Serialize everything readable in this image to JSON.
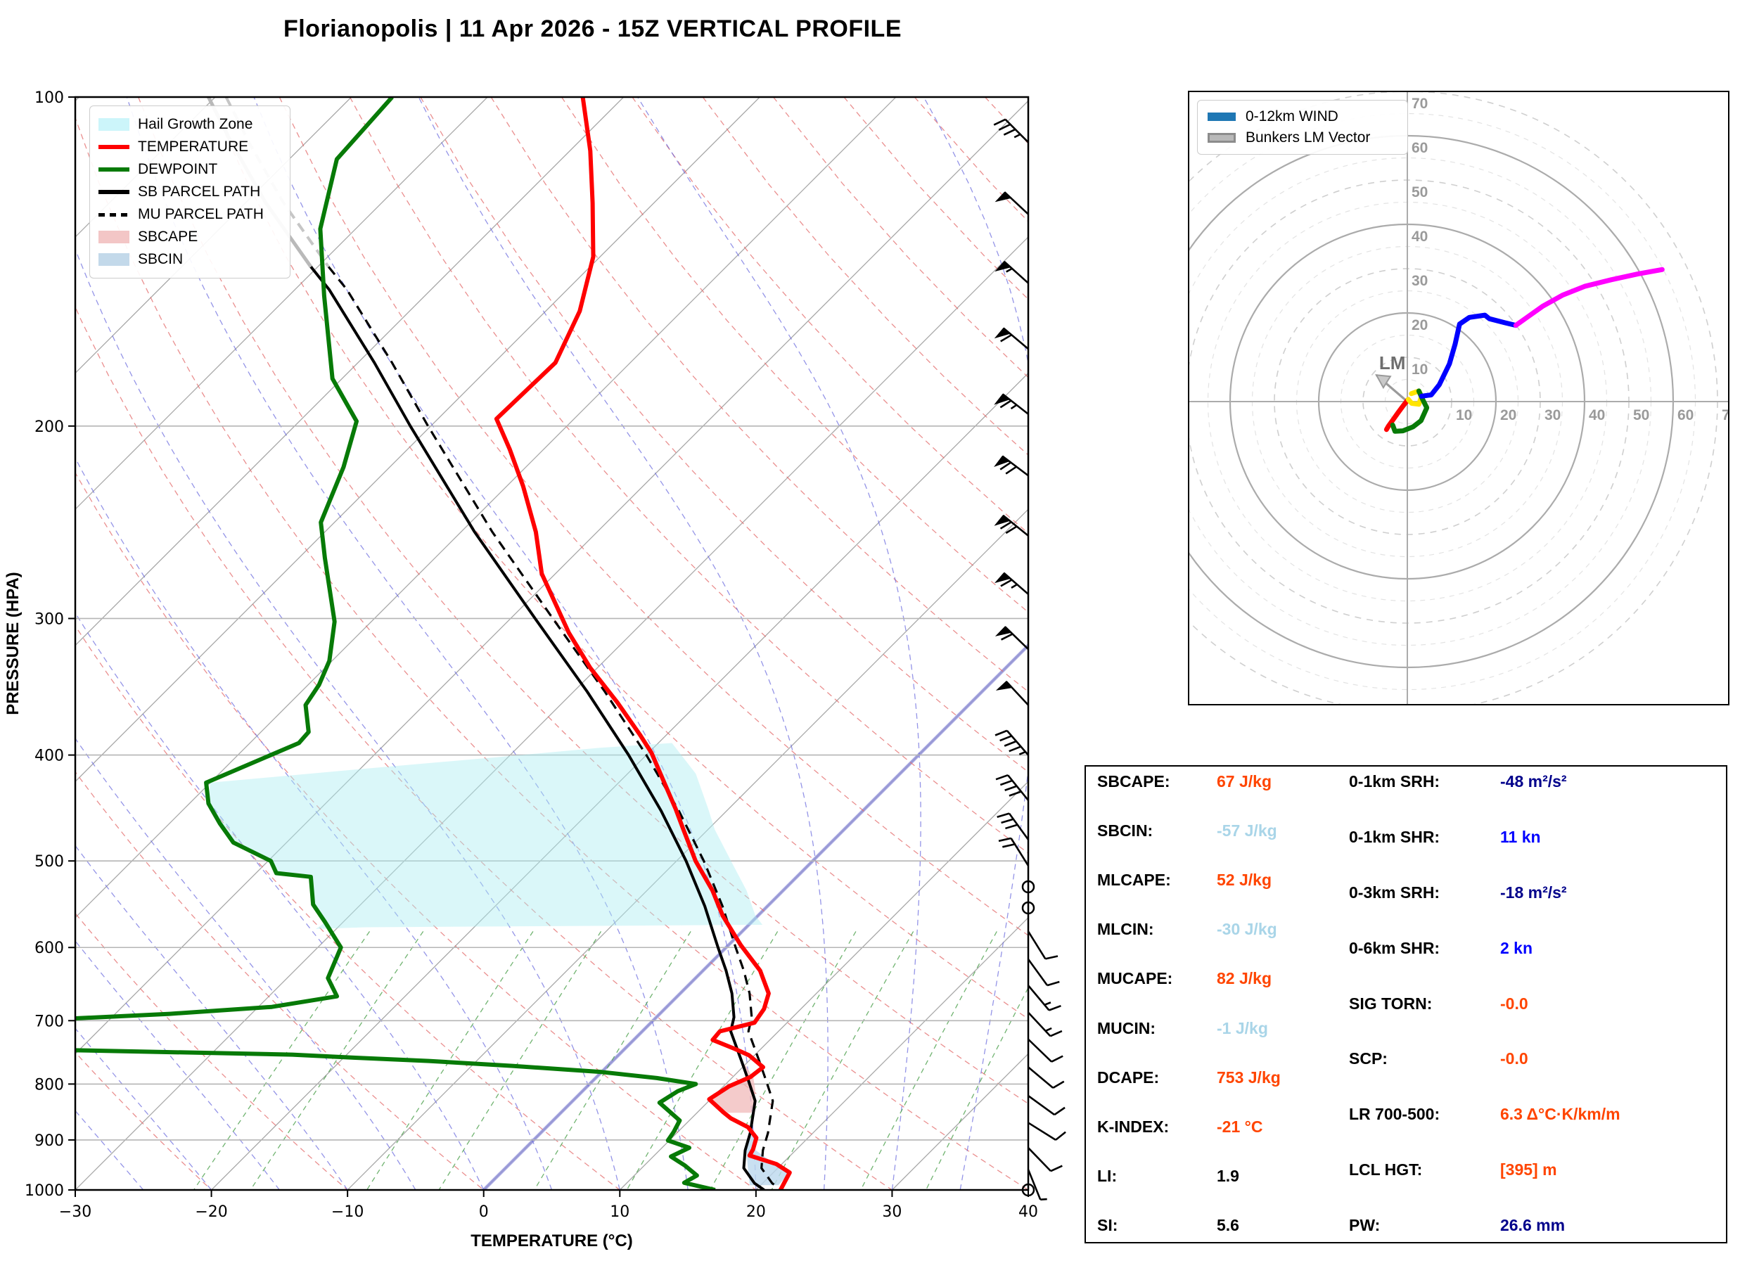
{
  "title": "Florianopolis | 11 Apr 2026 - 15Z VERTICAL PROFILE",
  "skewt": {
    "xlabel": "TEMPERATURE (°C)",
    "ylabel": "PRESSURE (HPA)",
    "x_ticks": [
      -30,
      -20,
      -10,
      0,
      10,
      20,
      30,
      40
    ],
    "p_ticks": [
      100,
      200,
      300,
      400,
      500,
      600,
      700,
      800,
      900,
      1000
    ],
    "legend": [
      {
        "label": "Hail Growth Zone",
        "swatch": "patch",
        "color": "#ccf5fa"
      },
      {
        "label": "TEMPERATURE",
        "swatch": "line",
        "color": "#ff0000"
      },
      {
        "label": "DEWPOINT",
        "swatch": "line",
        "color": "#077a07"
      },
      {
        "label": "SB PARCEL PATH",
        "swatch": "line",
        "color": "#000000"
      },
      {
        "label": "MU PARCEL PATH",
        "swatch": "dash",
        "color": "#000000"
      },
      {
        "label": "SBCAPE",
        "swatch": "patch",
        "color": "#f3c6c6"
      },
      {
        "label": "SBCIN",
        "swatch": "patch",
        "color": "#c3d9ea"
      }
    ]
  },
  "hodograph": {
    "legend": [
      {
        "label": "0-12km WIND",
        "swatch": "thick",
        "color": "#1f77b4"
      },
      {
        "label": "Bunkers LM Vector",
        "swatch": "gray",
        "color": "#b9b9b9"
      }
    ],
    "ring_labels": [
      10,
      20,
      30,
      40,
      50,
      60,
      70
    ],
    "lm_label": "LM"
  },
  "stats": {
    "left": [
      {
        "label": "SBCAPE:",
        "value": "67 J/kg",
        "color": "#ff4500"
      },
      {
        "label": "SBCIN:",
        "value": "-57 J/kg",
        "color": "#a9d5e8"
      },
      {
        "label": "MLCAPE:",
        "value": "52 J/kg",
        "color": "#ff4500"
      },
      {
        "label": "MLCIN:",
        "value": "-30 J/kg",
        "color": "#a9d5e8"
      },
      {
        "label": "MUCAPE:",
        "value": "82 J/kg",
        "color": "#ff4500"
      },
      {
        "label": "MUCIN:",
        "value": "-1 J/kg",
        "color": "#a9d5e8"
      },
      {
        "label": "DCAPE:",
        "value": "753 J/kg",
        "color": "#ff4500"
      },
      {
        "label": "K-INDEX:",
        "value": "-21 °C",
        "color": "#ff4500"
      },
      {
        "label": "LI:",
        "value": "1.9",
        "color": "#000000"
      },
      {
        "label": "SI:",
        "value": "5.6",
        "color": "#000000"
      }
    ],
    "right": [
      {
        "label": "0-1km SRH:",
        "value": "-48 m²/s²",
        "color": "#00008b"
      },
      {
        "label": "0-1km SHR:",
        "value": "11 kn",
        "color": "#0000ff"
      },
      {
        "label": "0-3km SRH:",
        "value": "-18 m²/s²",
        "color": "#00008b"
      },
      {
        "label": "0-6km SHR:",
        "value": "2 kn",
        "color": "#0000ff"
      },
      {
        "label": "SIG TORN:",
        "value": "-0.0",
        "color": "#ff4500"
      },
      {
        "label": "SCP:",
        "value": "-0.0",
        "color": "#ff4500"
      },
      {
        "label": "LR 700-500:",
        "value": "6.3 Δ°C·K/km/m",
        "color": "#ff4500"
      },
      {
        "label": "LCL HGT:",
        "value": "[395] m",
        "color": "#ff4500"
      },
      {
        "label": "PW:",
        "value": "26.6 mm",
        "color": "#00008b"
      }
    ]
  },
  "chart_data": {
    "type": "line",
    "title": "Florianopolis | 11 Apr 2026 - 15Z VERTICAL PROFILE",
    "xlabel": "TEMPERATURE (°C)",
    "ylabel": "PRESSURE (HPA)",
    "x_range_at_1000hpa_degC": [
      -30,
      40
    ],
    "pressure_range_hpa": [
      1000,
      100
    ],
    "pressure_scale": "log",
    "series": [
      {
        "name": "temperature_degC_vs_hpa",
        "color": "#ff0000",
        "points": [
          [
            100,
            -73
          ],
          [
            112,
            -68.5
          ],
          [
            125,
            -64.5
          ],
          [
            140,
            -60.5
          ],
          [
            157,
            -57.5
          ],
          [
            175,
            -55.5
          ],
          [
            197,
            -55.7
          ],
          [
            210,
            -52.5
          ],
          [
            227,
            -48.8
          ],
          [
            250,
            -44.5
          ],
          [
            273,
            -41.0
          ],
          [
            309,
            -34.7
          ],
          [
            333,
            -30.5
          ],
          [
            358,
            -26.0
          ],
          [
            383,
            -22.0
          ],
          [
            398,
            -19.8
          ],
          [
            416,
            -17.6
          ],
          [
            448,
            -13.9
          ],
          [
            468,
            -11.8
          ],
          [
            500,
            -8.6
          ],
          [
            532,
            -5.2
          ],
          [
            561,
            -2.6
          ],
          [
            597,
            0.9
          ],
          [
            630,
            4.2
          ],
          [
            661,
            6.5
          ],
          [
            683,
            7.3
          ],
          [
            703,
            7.6
          ],
          [
            716,
            5.7
          ],
          [
            729,
            5.8
          ],
          [
            743,
            8.1
          ],
          [
            753,
            9.6
          ],
          [
            772,
            11.5
          ],
          [
            788,
            11.3
          ],
          [
            804,
            10.4
          ],
          [
            826,
            9.9
          ],
          [
            849,
            11.9
          ],
          [
            860,
            12.9
          ],
          [
            876,
            14.8
          ],
          [
            896,
            16.2
          ],
          [
            918,
            16.8
          ],
          [
            930,
            17.0
          ],
          [
            947,
            19.6
          ],
          [
            964,
            21.2
          ],
          [
            1000,
            21.8
          ]
        ]
      },
      {
        "name": "dewpoint_degC_vs_hpa",
        "color": "#077a07",
        "points": [
          [
            100,
            -87
          ],
          [
            114,
            -86.5
          ],
          [
            132,
            -82.6
          ],
          [
            152,
            -77.4
          ],
          [
            181,
            -70.7
          ],
          [
            198,
            -65.8
          ],
          [
            218,
            -63.4
          ],
          [
            245,
            -61.0
          ],
          [
            264,
            -58.1
          ],
          [
            302,
            -52.7
          ],
          [
            328,
            -50.2
          ],
          [
            345,
            -49.2
          ],
          [
            360,
            -48.7
          ],
          [
            381,
            -46.5
          ],
          [
            390,
            -46.4
          ],
          [
            424,
            -50.3
          ],
          [
            443,
            -48.6
          ],
          [
            462,
            -46.3
          ],
          [
            481,
            -43.9
          ],
          [
            500,
            -39.8
          ],
          [
            513,
            -38.5
          ],
          [
            517,
            -35.7
          ],
          [
            548,
            -33.5
          ],
          [
            569,
            -31.3
          ],
          [
            600,
            -28.3
          ],
          [
            640,
            -27.0
          ],
          [
            665,
            -25.0
          ],
          [
            680,
            -29.0
          ],
          [
            690,
            -36.0
          ],
          [
            698,
            -44.0
          ],
          [
            700,
            -47.5
          ],
          [
            742,
            -43.0
          ],
          [
            745,
            -40.3
          ],
          [
            752,
            -24.0
          ],
          [
            757,
            -19.0
          ],
          [
            762,
            -13.5
          ],
          [
            770,
            -7.0
          ],
          [
            780,
            0.0
          ],
          [
            790,
            4.5
          ],
          [
            800,
            7.8
          ],
          [
            812,
            7.0
          ],
          [
            832,
            6.5
          ],
          [
            864,
            9.3
          ],
          [
            885,
            9.7
          ],
          [
            901,
            9.9
          ],
          [
            915,
            12.0
          ],
          [
            932,
            11.3
          ],
          [
            950,
            13.0
          ],
          [
            970,
            14.6
          ],
          [
            985,
            14.2
          ],
          [
            1000,
            17.0
          ]
        ]
      },
      {
        "name": "sb_parcel_path_degC_vs_hpa",
        "color": "#000000",
        "points": [
          [
            100,
            -100.5
          ],
          [
            110,
            -95.5
          ],
          [
            125,
            -88.5
          ],
          [
            143,
            -80.5
          ],
          [
            150,
            -77.5
          ],
          [
            175,
            -68.8
          ],
          [
            200,
            -61.5
          ],
          [
            250,
            -49.0
          ],
          [
            300,
            -38.2
          ],
          [
            350,
            -29.0
          ],
          [
            400,
            -21.3
          ],
          [
            450,
            -14.8
          ],
          [
            500,
            -9.3
          ],
          [
            550,
            -4.6
          ],
          [
            600,
            -0.6
          ],
          [
            630,
            1.7
          ],
          [
            661,
            3.8
          ],
          [
            695,
            5.7
          ],
          [
            716,
            6.5
          ],
          [
            761,
            9.4
          ],
          [
            794,
            11.4
          ],
          [
            829,
            13.4
          ],
          [
            887,
            15.4
          ],
          [
            920,
            16.3
          ],
          [
            955,
            17.5
          ],
          [
            986,
            19.4
          ],
          [
            1000,
            20.6
          ]
        ],
        "gray_above_hpa": 143
      },
      {
        "name": "mu_parcel_path_degC_vs_hpa",
        "color": "#000000",
        "style": "dashed",
        "offset_from_sb_degC": 1.3
      }
    ],
    "shaded_regions": [
      {
        "name": "hail_growth_zone",
        "color": "#aeeef2",
        "opacity": 0.45,
        "polygon_p_T": [
          [
            424,
            -50
          ],
          [
            412,
            -40
          ],
          [
            402,
            -31
          ],
          [
            394,
            -24
          ],
          [
            390,
            -19
          ],
          [
            416,
            -15
          ],
          [
            448,
            -11.5
          ],
          [
            468,
            -9.5
          ],
          [
            500,
            -6
          ],
          [
            532,
            -2.7
          ],
          [
            561,
            -0.2
          ],
          [
            572,
            1
          ],
          [
            575,
            -28
          ],
          [
            577,
            -31.5
          ],
          [
            569,
            -31.3
          ],
          [
            548,
            -33.5
          ],
          [
            517,
            -35.7
          ],
          [
            513,
            -38.5
          ],
          [
            500,
            -39.8
          ],
          [
            481,
            -43.9
          ],
          [
            462,
            -46.3
          ],
          [
            443,
            -48.6
          ]
        ]
      },
      {
        "name": "sbcape_region",
        "color": "#f0b9b9",
        "opacity": 0.75,
        "polygon_p_T": [
          [
            768,
            10.0
          ],
          [
            790,
            11.6
          ],
          [
            810,
            12.6
          ],
          [
            830,
            13.4
          ],
          [
            850,
            14.0
          ],
          [
            850,
            12.3
          ],
          [
            830,
            10.2
          ],
          [
            810,
            10.3
          ],
          [
            790,
            11.2
          ],
          [
            768,
            9.7
          ]
        ]
      },
      {
        "name": "sbcin_region",
        "color": "#bcd8ee",
        "opacity": 0.8,
        "polygon_p_T": [
          [
            892,
            15.6
          ],
          [
            920,
            16.4
          ],
          [
            950,
            17.6
          ],
          [
            975,
            18.6
          ],
          [
            990,
            19.2
          ],
          [
            990,
            21.3
          ],
          [
            965,
            21.2
          ],
          [
            947,
            19.5
          ],
          [
            918,
            16.9
          ],
          [
            892,
            16.1
          ]
        ]
      }
    ],
    "freezing_isotherm_highlight_degC": 0,
    "wind_barbs_kn": [
      {
        "p": 110,
        "spd": 35,
        "dir": 315
      },
      {
        "p": 128,
        "spd": 50,
        "dir": 313
      },
      {
        "p": 148,
        "spd": 55,
        "dir": 312
      },
      {
        "p": 170,
        "spd": 60,
        "dir": 310
      },
      {
        "p": 195,
        "spd": 65,
        "dir": 308
      },
      {
        "p": 222,
        "spd": 70,
        "dir": 307
      },
      {
        "p": 252,
        "spd": 70,
        "dir": 309
      },
      {
        "p": 285,
        "spd": 65,
        "dir": 311
      },
      {
        "p": 320,
        "spd": 60,
        "dir": 314
      },
      {
        "p": 360,
        "spd": 50,
        "dir": 317
      },
      {
        "p": 400,
        "spd": 45,
        "dir": 319
      },
      {
        "p": 440,
        "spd": 40,
        "dir": 321
      },
      {
        "p": 478,
        "spd": 30,
        "dir": 324
      },
      {
        "p": 505,
        "spd": 20,
        "dir": 328
      },
      {
        "p": 528,
        "spd": 0,
        "dir": 0
      },
      {
        "p": 552,
        "spd": 0,
        "dir": 0
      },
      {
        "p": 580,
        "spd": 8,
        "dir": 148
      },
      {
        "p": 615,
        "spd": 12,
        "dir": 144
      },
      {
        "p": 650,
        "spd": 15,
        "dir": 140
      },
      {
        "p": 688,
        "spd": 15,
        "dir": 137
      },
      {
        "p": 728,
        "spd": 12,
        "dir": 134
      },
      {
        "p": 772,
        "spd": 10,
        "dir": 130
      },
      {
        "p": 820,
        "spd": 10,
        "dir": 126
      },
      {
        "p": 868,
        "spd": 10,
        "dir": 122
      },
      {
        "p": 915,
        "spd": 8,
        "dir": 136
      },
      {
        "p": 958,
        "spd": 6,
        "dir": 158
      },
      {
        "p": 1000,
        "spd": 0,
        "dir": 0
      }
    ],
    "hodograph": {
      "units": "kn",
      "rings_solid": [
        20,
        40,
        60
      ],
      "rings_dashed": [
        10,
        30,
        50,
        70
      ],
      "segments": [
        {
          "name": "0-1km",
          "color": "#ff0000",
          "uv": [
            [
              -4.7,
              -6.3
            ],
            [
              -4.3,
              -5.6
            ],
            [
              -3.3,
              -4.2
            ],
            [
              -2.1,
              -2.5
            ],
            [
              -0.9,
              -0.9
            ],
            [
              0.2,
              0.5
            ]
          ]
        },
        {
          "name": "1-3km",
          "color": "#ffe400",
          "uv": [
            [
              0.2,
              0.5
            ],
            [
              1.0,
              -0.4
            ],
            [
              2.6,
              -0.6
            ],
            [
              3.2,
              1.2
            ],
            [
              2.6,
              2.4
            ],
            [
              0.9,
              1.8
            ]
          ]
        },
        {
          "name": "3-6km",
          "color": "#077a07",
          "uv": [
            [
              2.6,
              2.4
            ],
            [
              3.4,
              0.6
            ],
            [
              4.4,
              -1.4
            ],
            [
              3.1,
              -4.3
            ],
            [
              1.3,
              -5.7
            ],
            [
              -1.0,
              -6.6
            ],
            [
              -2.8,
              -6.7
            ],
            [
              -3.3,
              -5.3
            ]
          ]
        },
        {
          "name": "6-9km",
          "color": "#0000ff",
          "uv": [
            [
              3.2,
              1.2
            ],
            [
              5.4,
              1.5
            ],
            [
              7.2,
              3.8
            ],
            [
              9.5,
              8.5
            ],
            [
              10.8,
              13.0
            ],
            [
              11.8,
              17.5
            ],
            [
              14.0,
              19.0
            ],
            [
              17.5,
              19.5
            ],
            [
              18.5,
              18.7
            ],
            [
              22.0,
              17.8
            ],
            [
              24.5,
              17.2
            ]
          ]
        },
        {
          "name": "9-12km",
          "color": "#ff00ff",
          "uv": [
            [
              24.5,
              17.2
            ],
            [
              27.0,
              19.0
            ],
            [
              30.5,
              21.5
            ],
            [
              35.0,
              24.0
            ],
            [
              40.0,
              26.0
            ],
            [
              46.0,
              27.5
            ],
            [
              52.0,
              28.8
            ],
            [
              57.5,
              29.8
            ]
          ]
        }
      ],
      "lm_vector_uv": [
        -7.0,
        6.0
      ]
    }
  }
}
